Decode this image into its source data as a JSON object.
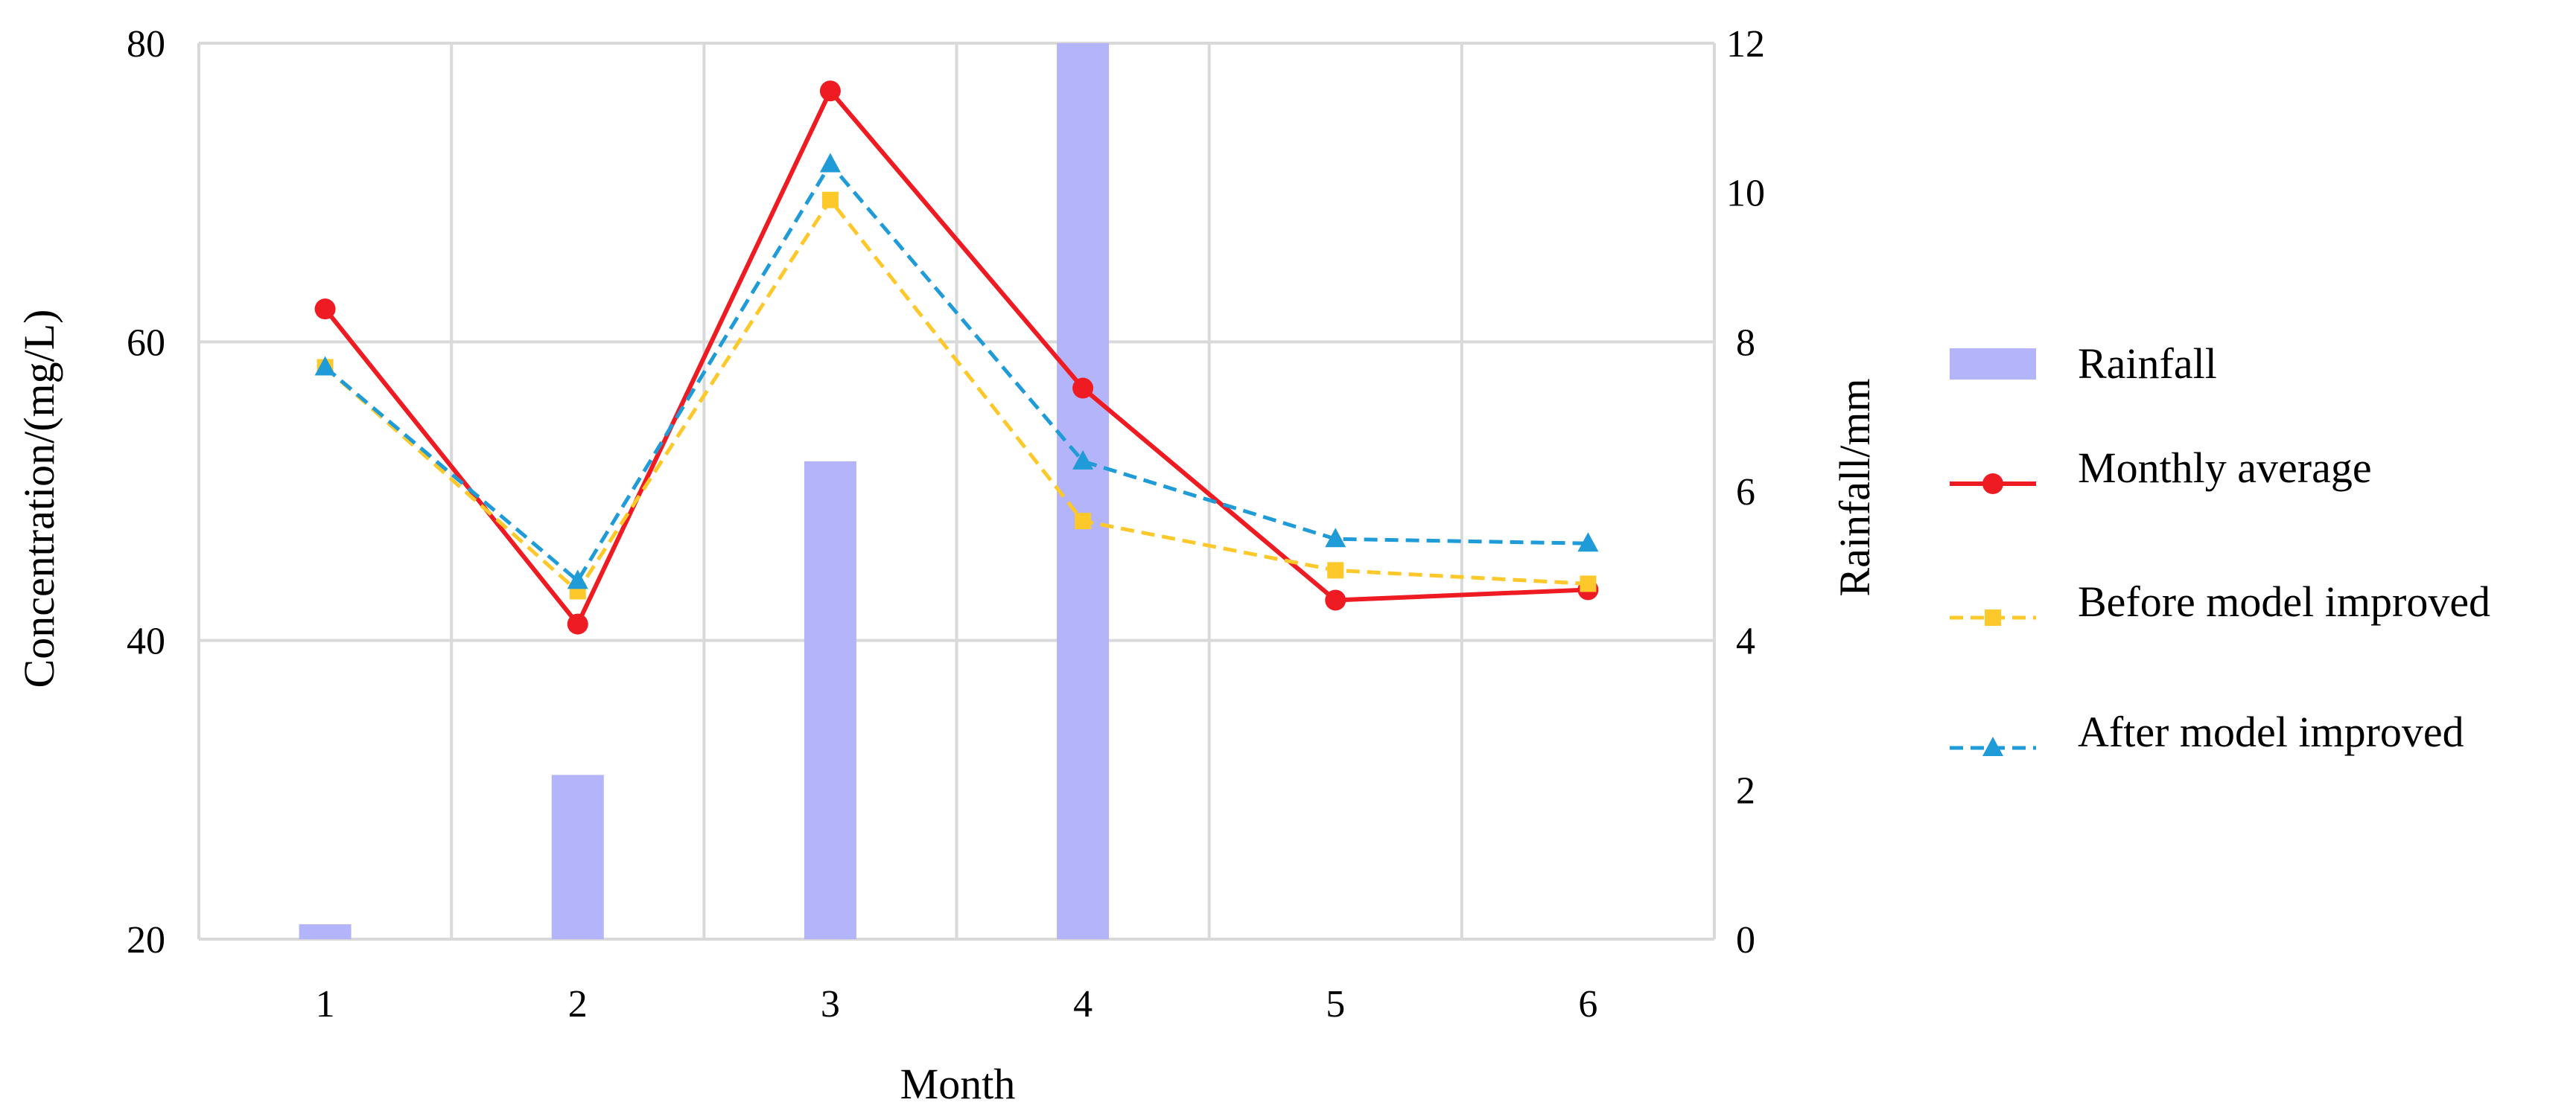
{
  "chart_data": {
    "type": "bar-line combo",
    "title": "",
    "xlabel": "Month",
    "ylabel": "Concentration/(mg/L)",
    "y2label": "Rainfall/mm",
    "categories": [
      "1",
      "2",
      "3",
      "4",
      "5",
      "6"
    ],
    "ylim": [
      20,
      80
    ],
    "y2lim": [
      0,
      12
    ],
    "yticks": [
      "20",
      "40",
      "60",
      "80"
    ],
    "y2ticks": [
      "0",
      "2",
      "4",
      "6",
      "8",
      "10",
      "12"
    ],
    "grid": true,
    "legend_position": "right",
    "bar_series": {
      "name": "Rainfall",
      "axis": "right",
      "color": "#b4b4fa",
      "values": [
        0.2,
        2.2,
        6.4,
        12.0,
        0,
        0
      ]
    },
    "line_series": [
      {
        "name": "Monthly average",
        "axis": "left",
        "color": "#ee1b23",
        "style": "solid",
        "marker": "circle",
        "values": [
          62.2,
          41.1,
          76.8,
          56.9,
          42.7,
          43.4
        ]
      },
      {
        "name": "Before model improved",
        "axis": "left",
        "color": "#fcc82a",
        "style": "dashed",
        "marker": "square",
        "values": [
          58.3,
          43.3,
          69.5,
          48.0,
          44.7,
          43.8
        ]
      },
      {
        "name": "After model improved",
        "axis": "left",
        "color": "#1f9bd7",
        "style": "dashed",
        "marker": "triangle",
        "values": [
          58.3,
          44.0,
          71.9,
          52.0,
          46.8,
          46.5
        ]
      }
    ]
  }
}
